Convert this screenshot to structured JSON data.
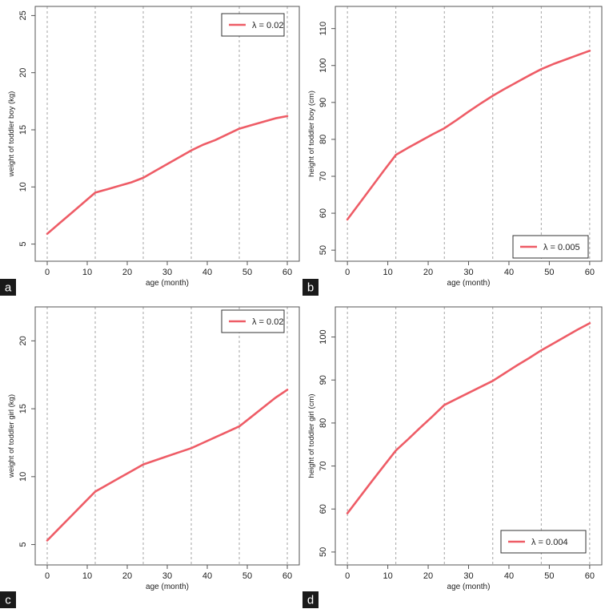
{
  "chart_data": [
    {
      "panel_label": "a",
      "type": "line",
      "xlabel": "age (month)",
      "ylabel": "weight of toddler boy (kg)",
      "xlim": [
        -3,
        63
      ],
      "ylim": [
        3.5,
        25.8
      ],
      "xticks": [
        0,
        10,
        20,
        30,
        40,
        50,
        60
      ],
      "yticks": [
        5,
        10,
        15,
        20,
        25
      ],
      "vlines": [
        0,
        12,
        24,
        36,
        48,
        60
      ],
      "legend": {
        "label": "λ = 0.02",
        "position": "top-right"
      },
      "series": [
        {
          "name": "λ = 0.02",
          "x": [
            0,
            3,
            6,
            9,
            12,
            15,
            18,
            21,
            24,
            27,
            30,
            33,
            36,
            39,
            42,
            45,
            48,
            51,
            54,
            57,
            60
          ],
          "y": [
            5.9,
            6.8,
            7.7,
            8.6,
            9.5,
            9.8,
            10.1,
            10.4,
            10.8,
            11.4,
            12.0,
            12.6,
            13.2,
            13.7,
            14.1,
            14.6,
            15.1,
            15.4,
            15.7,
            16.0,
            16.2
          ]
        }
      ]
    },
    {
      "panel_label": "b",
      "type": "line",
      "xlabel": "age (month)",
      "ylabel": "height of toddler boy (cm)",
      "xlim": [
        -3,
        63
      ],
      "ylim": [
        47,
        116
      ],
      "xticks": [
        0,
        10,
        20,
        30,
        40,
        50,
        60
      ],
      "yticks": [
        50,
        60,
        70,
        80,
        90,
        100,
        110
      ],
      "vlines": [
        0,
        12,
        24,
        36,
        48,
        60
      ],
      "legend": {
        "label": "λ = 0.005",
        "position": "bottom-right"
      },
      "series": [
        {
          "name": "λ = 0.005",
          "x": [
            0,
            3,
            6,
            9,
            12,
            15,
            18,
            21,
            24,
            27,
            30,
            33,
            36,
            39,
            42,
            45,
            48,
            51,
            54,
            57,
            60
          ],
          "y": [
            58.3,
            62.7,
            67.1,
            71.5,
            75.8,
            77.7,
            79.5,
            81.3,
            83.0,
            85.2,
            87.5,
            89.7,
            91.8,
            93.7,
            95.5,
            97.3,
            99.0,
            100.4,
            101.6,
            102.8,
            104.0
          ]
        }
      ]
    },
    {
      "panel_label": "c",
      "type": "line",
      "xlabel": "age (month)",
      "ylabel": "weight of toddler girl (kg)",
      "xlim": [
        -3,
        63
      ],
      "ylim": [
        3.5,
        22.5
      ],
      "xticks": [
        0,
        10,
        20,
        30,
        40,
        50,
        60
      ],
      "yticks": [
        5,
        10,
        15,
        20
      ],
      "vlines": [
        0,
        12,
        24,
        36,
        48,
        60
      ],
      "legend": {
        "label": "λ = 0.02",
        "position": "top-right"
      },
      "series": [
        {
          "name": "λ = 0.02",
          "x": [
            0,
            3,
            6,
            9,
            12,
            15,
            18,
            21,
            24,
            27,
            30,
            33,
            36,
            39,
            42,
            45,
            48,
            51,
            54,
            57,
            60
          ],
          "y": [
            5.3,
            6.2,
            7.1,
            8.0,
            8.9,
            9.4,
            9.9,
            10.4,
            10.9,
            11.2,
            11.5,
            11.8,
            12.1,
            12.5,
            12.9,
            13.3,
            13.7,
            14.4,
            15.1,
            15.8,
            16.4
          ]
        }
      ]
    },
    {
      "panel_label": "d",
      "type": "line",
      "xlabel": "age (month)",
      "ylabel": "height of toddler girl (cm)",
      "xlim": [
        -3,
        63
      ],
      "ylim": [
        47,
        107
      ],
      "xticks": [
        0,
        10,
        20,
        30,
        40,
        50,
        60
      ],
      "yticks": [
        50,
        60,
        70,
        80,
        90,
        100
      ],
      "vlines": [
        0,
        12,
        24,
        36,
        48,
        60
      ],
      "legend": {
        "label": "λ = 0.004",
        "position": "bottom-right"
      },
      "series": [
        {
          "name": "λ = 0.004",
          "x": [
            0,
            3,
            6,
            9,
            12,
            15,
            18,
            21,
            24,
            27,
            30,
            33,
            36,
            39,
            42,
            45,
            48,
            51,
            54,
            57,
            60
          ],
          "y": [
            59.0,
            62.7,
            66.4,
            70.0,
            73.6,
            76.2,
            78.9,
            81.5,
            84.2,
            85.6,
            87.0,
            88.4,
            89.8,
            91.6,
            93.4,
            95.1,
            96.9,
            98.5,
            100.1,
            101.7,
            103.2
          ]
        }
      ]
    }
  ],
  "style": {
    "line_color": "#ee5c66",
    "grid_color": "#9a9a9a",
    "axis_color": "#555555",
    "label_box_color": "#1a1a1a",
    "label_text_color": "#ffffff"
  }
}
